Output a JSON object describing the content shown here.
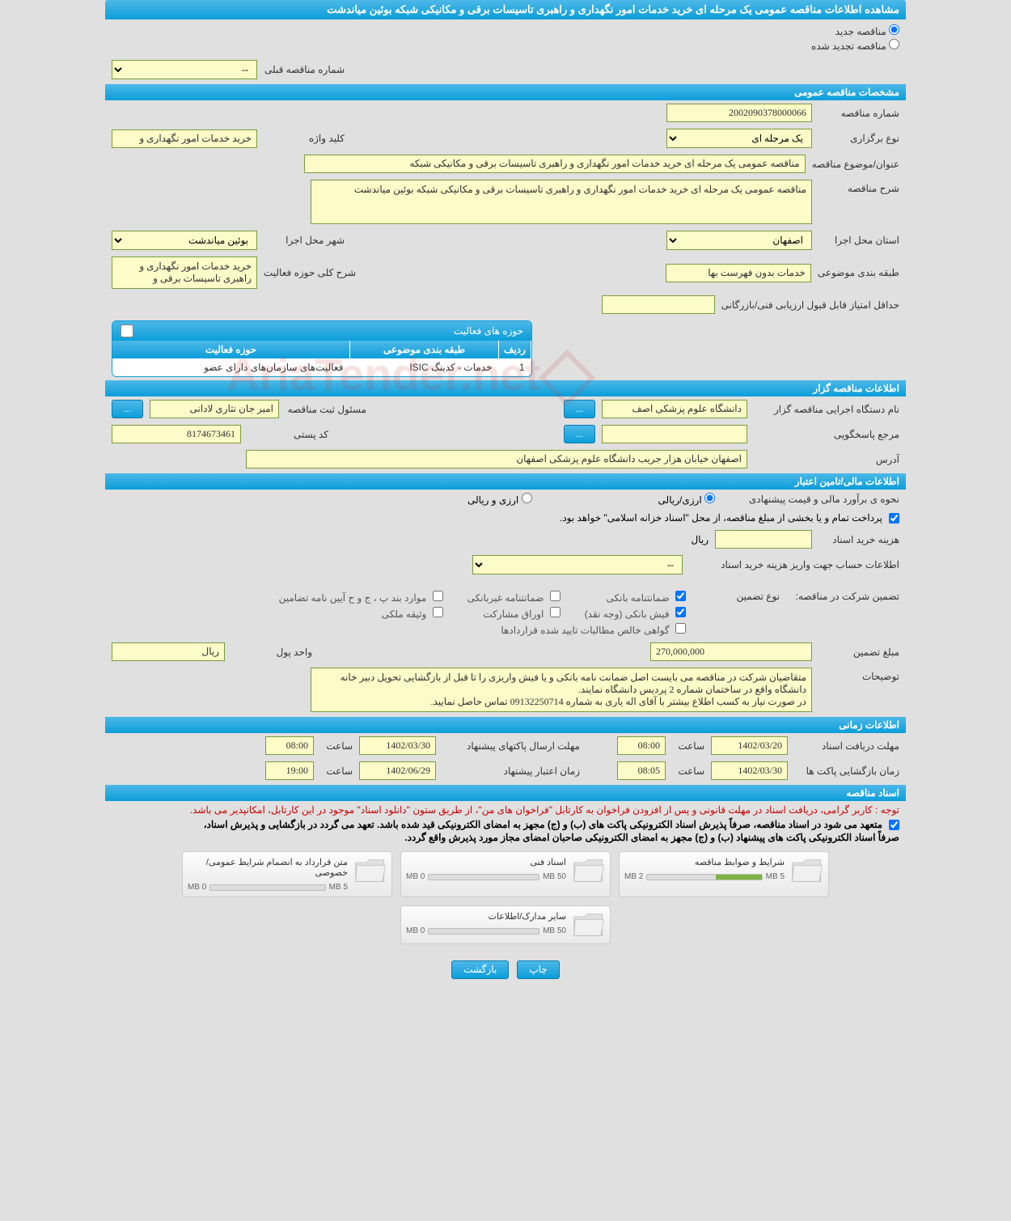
{
  "header": {
    "title": "مشاهده اطلاعات مناقصه عمومی یک مرحله ای خرید خدمات امور نگهداری و راهبری تاسیسات برقی و مکانیکی شبکه بوئین میاندشت"
  },
  "radio_options": {
    "new_tender": "مناقصه جدید",
    "renewed_tender": "مناقصه تجدید شده"
  },
  "prev_tender": {
    "label": "شماره مناقصه قبلی",
    "value": "--"
  },
  "sections": {
    "general_specs": "مشخصات مناقصه عمومی",
    "tenderer_info": "اطلاعات مناقصه گزار",
    "financial_info": "اطلاعات مالی/تامین اعتبار",
    "time_info": "اطلاعات زمانی",
    "docs": "اسناد مناقصه"
  },
  "general": {
    "tender_no_label": "شماره مناقصه",
    "tender_no": "2002090378000066",
    "holding_type_label": "نوع برگزاری",
    "holding_type": "یک مرحله ای",
    "keyword_label": "کلید واژه",
    "keyword": "خرید خدمات امور نگهداری و",
    "subject_label": "عنوان/موضوع مناقصه",
    "subject": "مناقصه عمومی یک مرحله ای خرید خدمات امور نگهداری و راهبری تاسیسات برقی و مکانیکی شبکه",
    "description_label": "شرح مناقصه",
    "description": "مناقصه عمومی یک مرحله ای خرید خدمات امور نگهداری و راهبری تاسیسات برقی و مکانیکی شبکه بوئین میاندشت",
    "province_label": "استان محل اجرا",
    "province": "اصفهان",
    "city_label": "شهر محل اجرا",
    "city": "بوئین میاندشت",
    "category_label": "طبقه بندی موضوعی",
    "category": "خدمات بدون فهرست بها",
    "activity_desc_label": "شرح کلی حوزه فعالیت",
    "activity_desc": "خرید خدمات امور نگهداری و راهبری تاسیسات برقی و",
    "min_score_label": "حداقل امتیاز قابل قبول ارزیابی فنی/بازرگانی"
  },
  "activity_table": {
    "title": "حوزه های فعالیت",
    "headers": {
      "row": "ردیف",
      "category": "طبقه بندی موضوعی",
      "field": "حوزه فعالیت"
    },
    "rows": [
      {
        "n": "1",
        "category": "خدمات - کدینگ ISIC",
        "field": "فعالیت‌های سازمان‌های دارای عضو"
      }
    ]
  },
  "tenderer": {
    "exec_org_label": "نام دستگاه اجرایی مناقصه گزار",
    "exec_org": "دانشگاه علوم پزشکی اصف",
    "registrar_label": "مسئول ثبت مناقصه",
    "registrar": "امیر جان نثاری لادانی",
    "contact_label": "مرجع پاسخگویی",
    "postal_label": "کد پستی",
    "postal": "8174673461",
    "address_label": "آدرس",
    "address": "اصفهان خیابان هزار جریب دانشگاه علوم پزشکی اصفهان"
  },
  "financial": {
    "pricing_method_label": "نحوه ی برآورد مالی و قیمت پیشنهادی",
    "pricing_rial": "ارزی/ریالی",
    "pricing_currency": "ارزی و ریالی",
    "payment_note": "پرداخت تمام و یا بخشی از مبلغ مناقصه، از محل \"اسناد خزانه اسلامی\" خواهد بود.",
    "doc_cost_label": "هزینه خرید اسناد",
    "doc_cost_unit": "ریال",
    "account_label": "اطلاعات حساب جهت واریز هزینه خرید اسناد",
    "account_value": "--",
    "guarantee_label": "تضمین شرکت در مناقصه:",
    "guarantee_type_label": "نوع تضمین",
    "chk_bank_guarantee": "ضمانتنامه بانکی",
    "chk_nonbank_guarantee": "ضمانتنامه غیربانکی",
    "chk_bylaw": "موارد بند پ ، ج و ح آیین نامه تضامین",
    "chk_bank_receipt": "فیش بانکی (وجه نقد)",
    "chk_securities": "اوراق مشارکت",
    "chk_property": "وثیقه ملکی",
    "chk_net_receivables": "گواهی خالص مطالبات تایید شده قراردادها",
    "guarantee_amount_label": "مبلغ تضمین",
    "guarantee_amount": "270,000,000",
    "currency_unit_label": "واحد پول",
    "currency_unit": "ریال",
    "notes_label": "توضیحات",
    "notes": "متقاضیان شرکت در مناقصه می بایست اصل ضمانت نامه بانکی و یا فیش واریزی را تا قبل از بازگشایی تحویل دبیر خانه دانشگاه واقع در ساختمان شماره 2 پردیس دانشگاه نمایند.\nدر صورت نیاز به کسب اطلاع بیشتر با آقای اله یاری به شماره 09132250714 تماس حاصل نمایید."
  },
  "timing": {
    "doc_receive_label": "مهلت دریافت اسناد",
    "doc_receive_date": "1402/03/20",
    "time_label": "ساعت",
    "doc_receive_time": "08:00",
    "packet_send_label": "مهلت ارسال پاکتهای پیشنهاد",
    "packet_send_date": "1402/03/30",
    "packet_send_time": "08:00",
    "opening_label": "زمان بازگشایی پاکت ها",
    "opening_date": "1402/03/30",
    "opening_time": "08:05",
    "validity_label": "زمان اعتبار پیشنهاد",
    "validity_date": "1402/06/29",
    "validity_time": "19:00"
  },
  "docs": {
    "red_note": "توجه : کاربر گرامی، دریافت اسناد در مهلت قانونی و پس از افزودن فراخوان به کارتابل \"فراخوان های من\"، از طریق ستون \"دانلود اسناد\" موجود در این کارتابل، امکانپذیر می باشد.",
    "note1": "متعهد می شود در اسناد مناقصه، صرفاً پذیرش اسناد الکترونیکی پاکت های (ب) و (ج) مجهز به امضای الکترونیکی قید شده باشد. تعهد می گردد در بازگشایی و پذیرش اسناد،",
    "note2": "صرفاً اسناد الکترونیکی پاکت های پیشنهاد (ب) و (ج) مجهز به امضای الکترونیکی صاحبان امضای مجاز مورد پذیرش واقع گردد.",
    "cards": [
      {
        "title": "شرایط و ضوابط مناقصه",
        "used": "2 MB",
        "total": "5 MB",
        "fill_pct": 40
      },
      {
        "title": "اسناد فنی",
        "used": "0 MB",
        "total": "50 MB",
        "fill_pct": 0
      },
      {
        "title": "متن قرارداد به انضمام شرایط عمومی/خصوصی",
        "used": "0 MB",
        "total": "5 MB",
        "fill_pct": 0
      },
      {
        "title": "سایر مدارک/اطلاعات",
        "used": "0 MB",
        "total": "50 MB",
        "fill_pct": 0
      }
    ]
  },
  "buttons": {
    "print": "چاپ",
    "back": "بازگشت",
    "dots": "..."
  },
  "watermark": "AriaTender.net",
  "colors": {
    "blue_grad_top": "#4db8e8",
    "blue_grad_bottom": "#0b9ed9",
    "yellow_bg": "#fdfbc8",
    "yellow_border": "#7a9e3e",
    "page_bg": "#e0e0e0"
  }
}
